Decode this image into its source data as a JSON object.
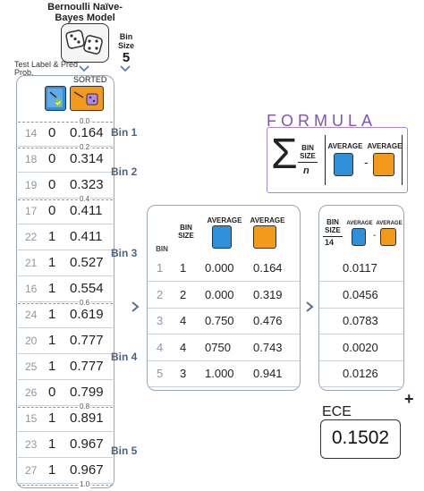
{
  "model": {
    "title": "Bernoulli Naïve-Bayes Model"
  },
  "bin_size": {
    "label": "Bin Size",
    "value": "5"
  },
  "test_label": "Test Label & Pred Prob.",
  "sorted_header": "SORTED",
  "boundaries": [
    "0.0",
    "0.2",
    "0.4",
    "0.6",
    "0.8",
    "1.0"
  ],
  "bins": [
    {
      "label": "Bin 1"
    },
    {
      "label": "Bin 2"
    },
    {
      "label": "Bin 3"
    },
    {
      "label": "Bin 4"
    },
    {
      "label": "Bin 5"
    }
  ],
  "sorted_rows": [
    {
      "idx": "14",
      "label": "0",
      "prob": "0.164"
    },
    {
      "idx": "18",
      "label": "0",
      "prob": "0.314"
    },
    {
      "idx": "19",
      "label": "0",
      "prob": "0.323"
    },
    {
      "idx": "17",
      "label": "0",
      "prob": "0.411"
    },
    {
      "idx": "22",
      "label": "1",
      "prob": "0.411"
    },
    {
      "idx": "21",
      "label": "1",
      "prob": "0.527"
    },
    {
      "idx": "16",
      "label": "1",
      "prob": "0.554"
    },
    {
      "idx": "24",
      "label": "1",
      "prob": "0.619"
    },
    {
      "idx": "20",
      "label": "1",
      "prob": "0.777"
    },
    {
      "idx": "25",
      "label": "1",
      "prob": "0.777"
    },
    {
      "idx": "26",
      "label": "0",
      "prob": "0.799"
    },
    {
      "idx": "15",
      "label": "1",
      "prob": "0.891"
    },
    {
      "idx": "23",
      "label": "1",
      "prob": "0.967"
    },
    {
      "idx": "27",
      "label": "1",
      "prob": "0.967"
    }
  ],
  "avg_table": {
    "headers": {
      "bin": "BIN",
      "bin_size": "BIN SIZE",
      "avg1": "AVERAGE",
      "avg2": "AVERAGE"
    },
    "rows": [
      {
        "bin": "1",
        "size": "1",
        "avg_label": "0.000",
        "avg_prob": "0.164"
      },
      {
        "bin": "2",
        "size": "2",
        "avg_label": "0.000",
        "avg_prob": "0.319"
      },
      {
        "bin": "3",
        "size": "4",
        "avg_label": "0.750",
        "avg_prob": "0.476"
      },
      {
        "bin": "4",
        "size": "4",
        "avg_label": "0750",
        "avg_prob": "0.743"
      },
      {
        "bin": "5",
        "size": "3",
        "avg_label": "1.000",
        "avg_prob": "0.941"
      }
    ]
  },
  "ece_table": {
    "header": {
      "bin_size": "BIN SIZE",
      "n": "14",
      "avg1": "AVERAGE",
      "avg2": "AVERAGE",
      "minus": "-"
    },
    "values": [
      "0.0117",
      "0.0456",
      "0.0783",
      "0.0020",
      "0.0126"
    ]
  },
  "formula": {
    "title": "FORMULA",
    "bin_size": "BIN SIZE",
    "n": "n",
    "avg1": "AVERAGE",
    "avg2": "AVERAGE",
    "minus": "-"
  },
  "plus": "+",
  "ece": {
    "label": "ECE",
    "value": "0.1502"
  },
  "colors": {
    "accent": "#7f51c2",
    "blue": "#2f8fd9",
    "orange": "#f39a1d",
    "green": "#8ec63f"
  },
  "icons": [
    "dice-icon",
    "true-label-icon",
    "predicted-prob-icon",
    "chevron-right-icon",
    "chevron-down-icon"
  ]
}
